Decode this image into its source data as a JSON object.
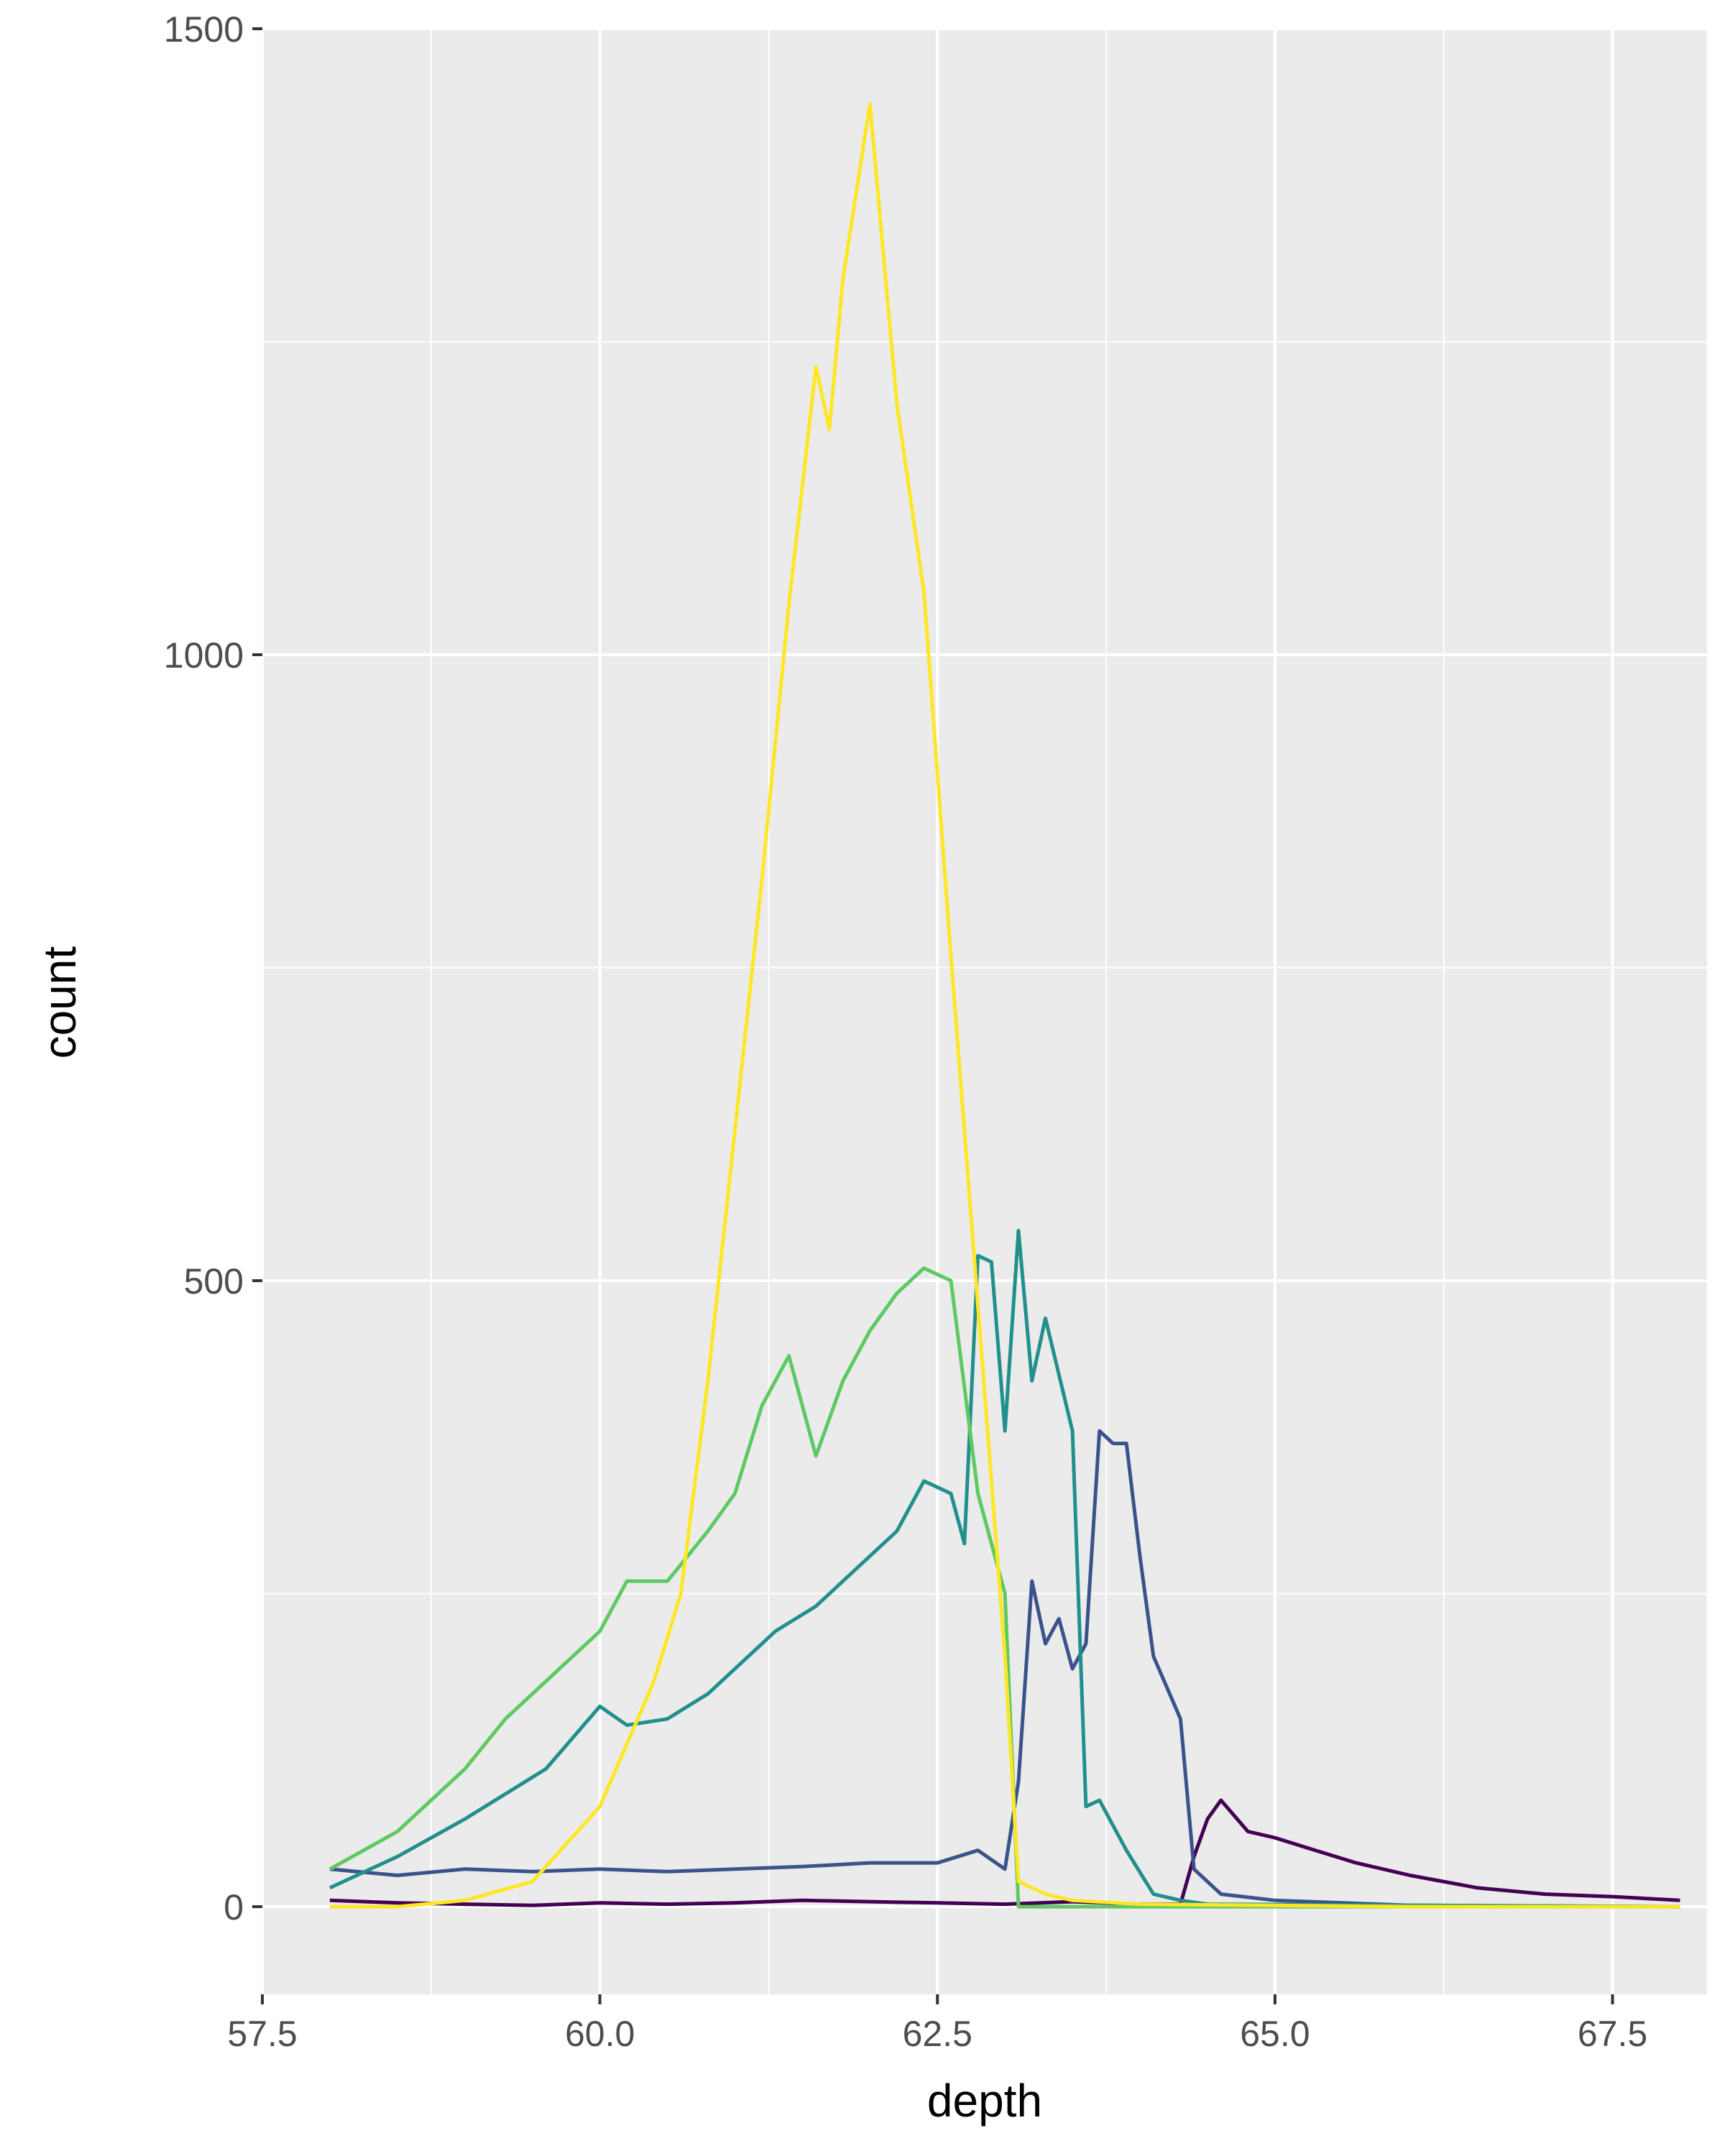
{
  "chart_data": {
    "type": "line",
    "title": "",
    "xlabel": "depth",
    "ylabel": "count",
    "xlim": [
      57.5,
      68.2
    ],
    "ylim": [
      -70,
      1500
    ],
    "x_ticks": [
      57.5,
      60.0,
      62.5,
      65.0,
      67.5
    ],
    "x_tick_labels": [
      "57.5",
      "60.0",
      "62.5",
      "65.0",
      "67.5"
    ],
    "y_ticks": [
      0,
      500,
      1000,
      1500
    ],
    "y_tick_labels": [
      "0",
      "500",
      "1000",
      "1500"
    ],
    "grid": true,
    "legend": "none",
    "panel_background": "#ebebeb",
    "grid_color": "#ffffff",
    "series": [
      {
        "color": "#440154",
        "points": [
          [
            58.0,
            5
          ],
          [
            58.5,
            3
          ],
          [
            59.0,
            2
          ],
          [
            59.5,
            1
          ],
          [
            60.0,
            3
          ],
          [
            60.5,
            2
          ],
          [
            61.0,
            3
          ],
          [
            61.5,
            5
          ],
          [
            62.0,
            4
          ],
          [
            62.5,
            3
          ],
          [
            63.0,
            2
          ],
          [
            63.5,
            4
          ],
          [
            64.0,
            2
          ],
          [
            64.3,
            2
          ],
          [
            64.4,
            40
          ],
          [
            64.5,
            70
          ],
          [
            64.6,
            85
          ],
          [
            64.8,
            60
          ],
          [
            65.0,
            55
          ],
          [
            65.3,
            45
          ],
          [
            65.6,
            35
          ],
          [
            66.0,
            25
          ],
          [
            66.5,
            15
          ],
          [
            67.0,
            10
          ],
          [
            67.5,
            8
          ],
          [
            68.0,
            5
          ]
        ]
      },
      {
        "color": "#3b528b",
        "points": [
          [
            58.0,
            30
          ],
          [
            58.5,
            25
          ],
          [
            59.0,
            30
          ],
          [
            59.5,
            28
          ],
          [
            60.0,
            30
          ],
          [
            60.5,
            28
          ],
          [
            61.0,
            30
          ],
          [
            61.5,
            32
          ],
          [
            62.0,
            35
          ],
          [
            62.5,
            35
          ],
          [
            62.8,
            45
          ],
          [
            63.0,
            30
          ],
          [
            63.1,
            100
          ],
          [
            63.2,
            260
          ],
          [
            63.3,
            210
          ],
          [
            63.4,
            230
          ],
          [
            63.5,
            190
          ],
          [
            63.6,
            210
          ],
          [
            63.7,
            380
          ],
          [
            63.8,
            370
          ],
          [
            63.9,
            370
          ],
          [
            64.0,
            280
          ],
          [
            64.1,
            200
          ],
          [
            64.3,
            150
          ],
          [
            64.4,
            30
          ],
          [
            64.6,
            10
          ],
          [
            65.0,
            5
          ],
          [
            65.5,
            3
          ],
          [
            66.0,
            1
          ],
          [
            68.0,
            0
          ]
        ]
      },
      {
        "color": "#21908c",
        "points": [
          [
            58.0,
            15
          ],
          [
            58.5,
            40
          ],
          [
            59.0,
            70
          ],
          [
            59.3,
            90
          ],
          [
            59.6,
            110
          ],
          [
            60.0,
            160
          ],
          [
            60.2,
            145
          ],
          [
            60.5,
            150
          ],
          [
            60.8,
            170
          ],
          [
            61.0,
            190
          ],
          [
            61.3,
            220
          ],
          [
            61.6,
            240
          ],
          [
            61.9,
            270
          ],
          [
            62.2,
            300
          ],
          [
            62.4,
            340
          ],
          [
            62.6,
            330
          ],
          [
            62.7,
            290
          ],
          [
            62.8,
            520
          ],
          [
            62.9,
            515
          ],
          [
            63.0,
            380
          ],
          [
            63.1,
            540
          ],
          [
            63.2,
            420
          ],
          [
            63.3,
            470
          ],
          [
            63.5,
            380
          ],
          [
            63.6,
            80
          ],
          [
            63.7,
            85
          ],
          [
            63.9,
            45
          ],
          [
            64.1,
            10
          ],
          [
            64.3,
            5
          ],
          [
            64.5,
            2
          ],
          [
            68.0,
            0
          ]
        ]
      },
      {
        "color": "#5ec962",
        "points": [
          [
            58.0,
            30
          ],
          [
            58.5,
            60
          ],
          [
            59.0,
            110
          ],
          [
            59.3,
            150
          ],
          [
            59.6,
            180
          ],
          [
            60.0,
            220
          ],
          [
            60.2,
            260
          ],
          [
            60.5,
            260
          ],
          [
            60.8,
            300
          ],
          [
            61.0,
            330
          ],
          [
            61.2,
            400
          ],
          [
            61.4,
            440
          ],
          [
            61.6,
            360
          ],
          [
            61.8,
            420
          ],
          [
            62.0,
            460
          ],
          [
            62.2,
            490
          ],
          [
            62.4,
            510
          ],
          [
            62.6,
            500
          ],
          [
            62.8,
            330
          ],
          [
            63.0,
            250
          ],
          [
            63.1,
            0
          ],
          [
            63.5,
            0
          ],
          [
            68.0,
            0
          ]
        ]
      },
      {
        "color": "#fde725",
        "points": [
          [
            58.0,
            0
          ],
          [
            58.5,
            0
          ],
          [
            59.0,
            5
          ],
          [
            59.5,
            20
          ],
          [
            60.0,
            80
          ],
          [
            60.2,
            130
          ],
          [
            60.4,
            180
          ],
          [
            60.6,
            250
          ],
          [
            60.8,
            420
          ],
          [
            61.0,
            620
          ],
          [
            61.2,
            820
          ],
          [
            61.4,
            1040
          ],
          [
            61.6,
            1230
          ],
          [
            61.7,
            1180
          ],
          [
            61.8,
            1300
          ],
          [
            62.0,
            1440
          ],
          [
            62.2,
            1200
          ],
          [
            62.4,
            1050
          ],
          [
            62.6,
            760
          ],
          [
            62.8,
            480
          ],
          [
            63.0,
            200
          ],
          [
            63.1,
            20
          ],
          [
            63.3,
            10
          ],
          [
            63.5,
            5
          ],
          [
            64.0,
            2
          ],
          [
            65.0,
            1
          ],
          [
            66.0,
            0
          ],
          [
            68.0,
            0
          ]
        ]
      }
    ]
  }
}
